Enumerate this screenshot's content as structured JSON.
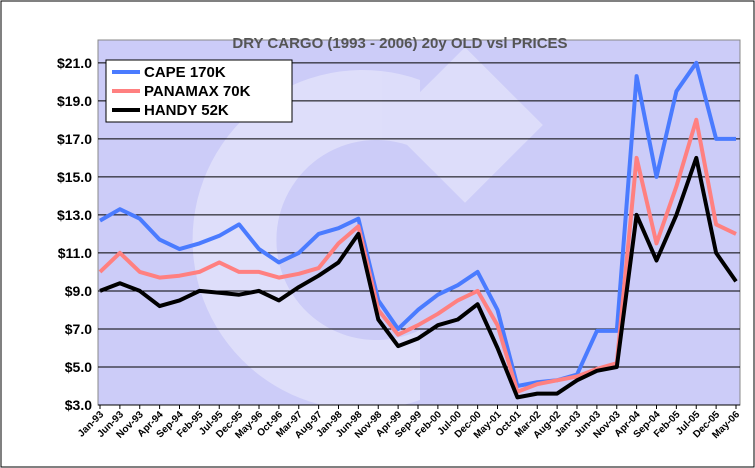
{
  "chart_data": {
    "type": "line",
    "title": "DRY CARGO (1993 - 2006) 20y OLD vsl PRICES",
    "categories": [
      "Jan-93",
      "Jun-93",
      "Nov-93",
      "Apr-94",
      "Sep-94",
      "Feb-95",
      "Jul-95",
      "Dec-95",
      "May-96",
      "Oct-96",
      "Mar-97",
      "Aug-97",
      "Jan-98",
      "Jun-98",
      "Nov-98",
      "Apr-99",
      "Sep-99",
      "Feb-00",
      "Jul-00",
      "Dec-00",
      "May-01",
      "Oct-01",
      "Mar-02",
      "Aug-02",
      "Jan-03",
      "Jun-03",
      "Nov-03",
      "Apr-04",
      "Sep-04",
      "Feb-05",
      "Jul-05",
      "Dec-05",
      "May-06"
    ],
    "series": [
      {
        "name": "CAPE 170K",
        "color": "#4a7bff",
        "values": [
          12.7,
          13.3,
          12.8,
          11.7,
          11.2,
          11.5,
          11.9,
          12.5,
          11.2,
          10.5,
          11.0,
          12.0,
          12.3,
          12.8,
          8.5,
          7.0,
          8.0,
          8.8,
          9.3,
          10.0,
          8.0,
          4.0,
          4.2,
          4.3,
          4.6,
          6.9,
          6.9,
          20.3,
          15.0,
          19.5,
          21.0,
          17.0,
          17.0
        ]
      },
      {
        "name": "PANAMAX 70K",
        "color": "#ff8080",
        "values": [
          10.0,
          11.0,
          10.0,
          9.7,
          9.8,
          10.0,
          10.5,
          10.0,
          10.0,
          9.7,
          9.9,
          10.2,
          11.5,
          12.4,
          8.0,
          6.7,
          7.2,
          7.8,
          8.5,
          9.0,
          7.2,
          3.7,
          4.1,
          4.3,
          4.5,
          4.9,
          5.2,
          16.0,
          11.5,
          14.5,
          18.0,
          12.5,
          12.0
        ]
      },
      {
        "name": "HANDY 52K",
        "color": "#000000",
        "values": [
          9.0,
          9.4,
          9.0,
          8.2,
          8.5,
          9.0,
          8.9,
          8.8,
          9.0,
          8.5,
          9.2,
          9.8,
          10.5,
          12.0,
          7.5,
          6.1,
          6.5,
          7.2,
          7.5,
          8.3,
          6.0,
          3.4,
          3.6,
          3.6,
          4.3,
          4.8,
          5.0,
          13.0,
          10.6,
          13.0,
          16.0,
          11.0,
          9.5
        ]
      }
    ],
    "ylim": [
      3,
      22.2
    ],
    "yticks": [
      {
        "value": 3,
        "label": "$3.0"
      },
      {
        "value": 5,
        "label": "$5.0"
      },
      {
        "value": 7,
        "label": "$7.0"
      },
      {
        "value": 9,
        "label": "$9.0"
      },
      {
        "value": 11,
        "label": "$11.0"
      },
      {
        "value": 13,
        "label": "$13.0"
      },
      {
        "value": 15,
        "label": "$15.0"
      },
      {
        "value": 17,
        "label": "$17.0"
      },
      {
        "value": 19,
        "label": "$19.0"
      },
      {
        "value": 21,
        "label": "$21.0"
      }
    ],
    "grid": true
  }
}
